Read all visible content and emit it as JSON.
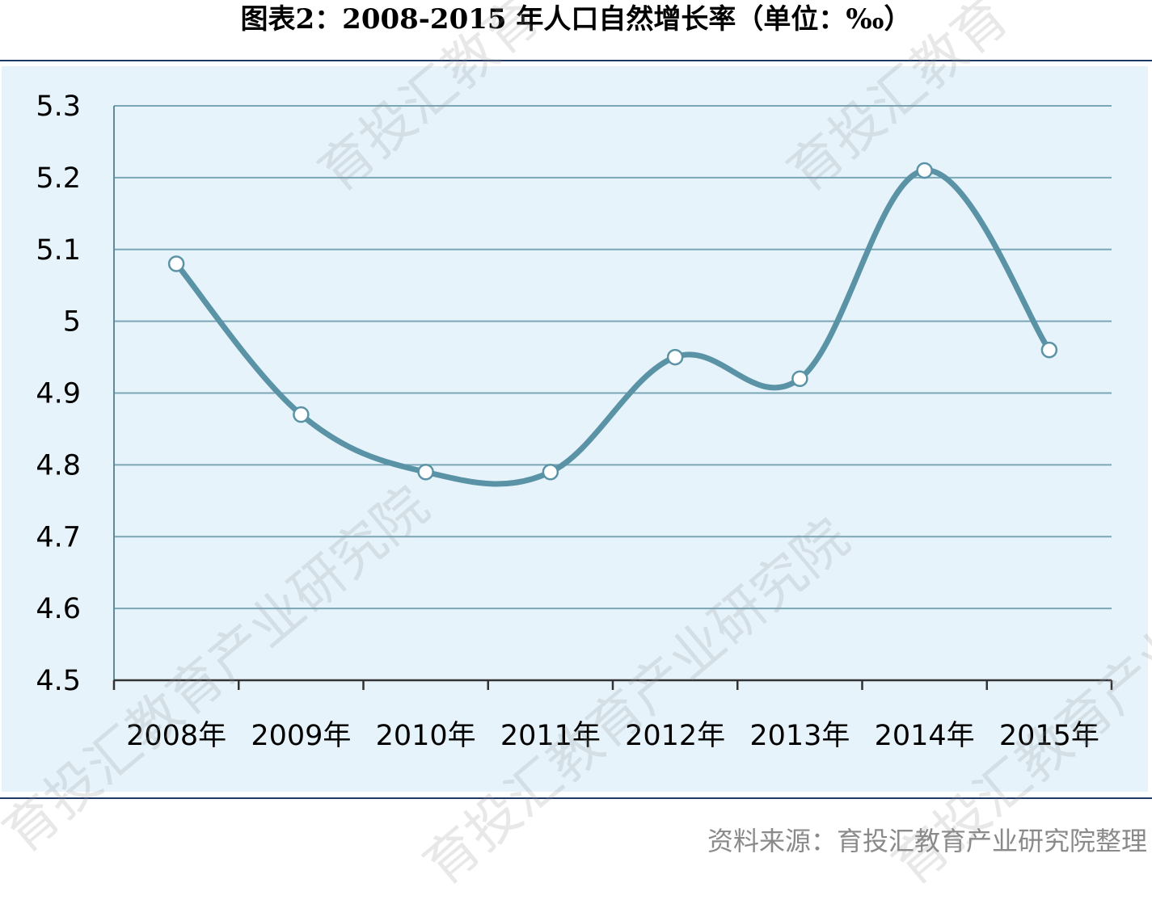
{
  "title": "图表2：2008-2015 年人口自然增长率（单位：‰）",
  "source": "资料来源：育投汇教育产业研究院整理",
  "watermark": {
    "text_full": "育投汇教育产业研究院",
    "text_partial": "育投汇教育"
  },
  "chart_data": {
    "type": "line",
    "title": "图表2：2008-2015 年人口自然增长率（单位：‰）",
    "xlabel": "",
    "ylabel": "",
    "categories": [
      "2008年",
      "2009年",
      "2010年",
      "2011年",
      "2012年",
      "2013年",
      "2014年",
      "2015年"
    ],
    "series": [
      {
        "values": [
          5.08,
          4.87,
          4.79,
          4.79,
          4.95,
          4.92,
          5.21,
          4.96
        ]
      }
    ],
    "ylim": [
      4.5,
      5.3
    ],
    "yticks": [
      "4.5",
      "4.6",
      "4.7",
      "4.8",
      "4.9",
      "5",
      "5.1",
      "5.2",
      "5.3"
    ],
    "smooth": true,
    "markers": "hollow-circle",
    "grid": "horizontal",
    "legend": "none",
    "colors": {
      "line": "#5b93a6",
      "grid": "#7aa6b6",
      "axis": "#5f8a98",
      "background": "#e6f3fb",
      "marker_fill": "#ffffff"
    }
  }
}
